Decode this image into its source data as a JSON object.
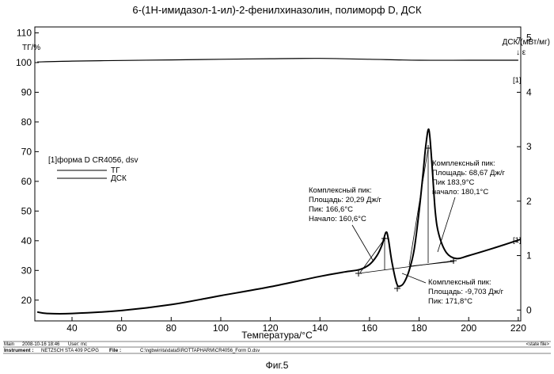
{
  "chart_data": {
    "type": "line",
    "title": "6-(1Н-имидазол-1-ил)-2-фенилхиназолин, полиморф D, ДСК",
    "xlabel": "Температура/°C",
    "ylabel_left": "ТГ/%",
    "ylabel_right": "ДСК/(мВт/мг)",
    "exo_symbol": "↓ ε",
    "xlim": [
      25,
      221
    ],
    "ylim_left": [
      13,
      112
    ],
    "ylim_right": [
      -0.2,
      5.2
    ],
    "x_ticks": [
      40,
      60,
      80,
      100,
      120,
      140,
      160,
      180,
      200,
      220
    ],
    "y_ticks_left": [
      20,
      30,
      40,
      50,
      60,
      70,
      80,
      90,
      100,
      110
    ],
    "y_ticks_right": [
      0,
      1,
      2,
      3,
      4,
      5
    ],
    "legend": {
      "title": "[1]форма D CR4056, dsv",
      "entries": [
        "ТГ",
        "ДСК"
      ]
    },
    "curve_tags": [
      "[1]",
      "[1]"
    ],
    "series": [
      {
        "name": "ТГ",
        "axis": "left",
        "x": [
          26,
          40,
          60,
          80,
          100,
          120,
          140,
          160,
          180,
          200,
          220
        ],
        "y": [
          100.2,
          100.5,
          100.7,
          100.9,
          101.1,
          101.3,
          101.4,
          101.1,
          100.8,
          100.8,
          100.8
        ]
      },
      {
        "name": "ДСК",
        "axis": "left",
        "x": [
          26,
          30,
          40,
          60,
          80,
          100,
          120,
          140,
          150,
          156,
          160,
          163,
          165,
          166.6,
          167.5,
          169,
          171,
          172.5,
          174,
          176,
          178,
          180,
          181.5,
          182.7,
          183.9,
          185,
          186.5,
          188,
          191,
          195,
          200,
          210,
          221
        ],
        "y": [
          16,
          15.5,
          15.5,
          16.5,
          18.5,
          21.5,
          24.5,
          28,
          29.5,
          30.3,
          32,
          35,
          38.5,
          42.8,
          41,
          33,
          25.5,
          24.8,
          26,
          30,
          37,
          50,
          62,
          72,
          77.5,
          68,
          50,
          42,
          36,
          34,
          35,
          37.5,
          40.5
        ]
      }
    ],
    "annotations": [
      {
        "lines": [
          "Комплексный пик:",
          "Площадь: 20,29 Дж/г",
          "Пик: 166,6°C",
          "Начало: 160,6°C"
        ]
      },
      {
        "lines": [
          "Комплексный пик:",
          "Площадь: 68,67 Дж/г",
          "Пик 183,9°C",
          "начало: 180,1°C"
        ]
      },
      {
        "lines": [
          "Комплексный пик:",
          "Площадь: -9,703 Дж/г",
          "Пик: 171,8°C"
        ]
      }
    ]
  },
  "footer": {
    "main_label": "Main",
    "timestamp": "2008-10-16 18:46",
    "user": "User: mc",
    "state_file": "<state file>",
    "instrument_label": "Instrument :",
    "instrument": "NETZSCH STA 409 PC/PG",
    "file_label": "File :",
    "file": "C:\\ngbwin\\ta\\data5\\ROTTAPHARM\\CR4056_Form D.dsv"
  },
  "figure_caption": "Фиг.5"
}
